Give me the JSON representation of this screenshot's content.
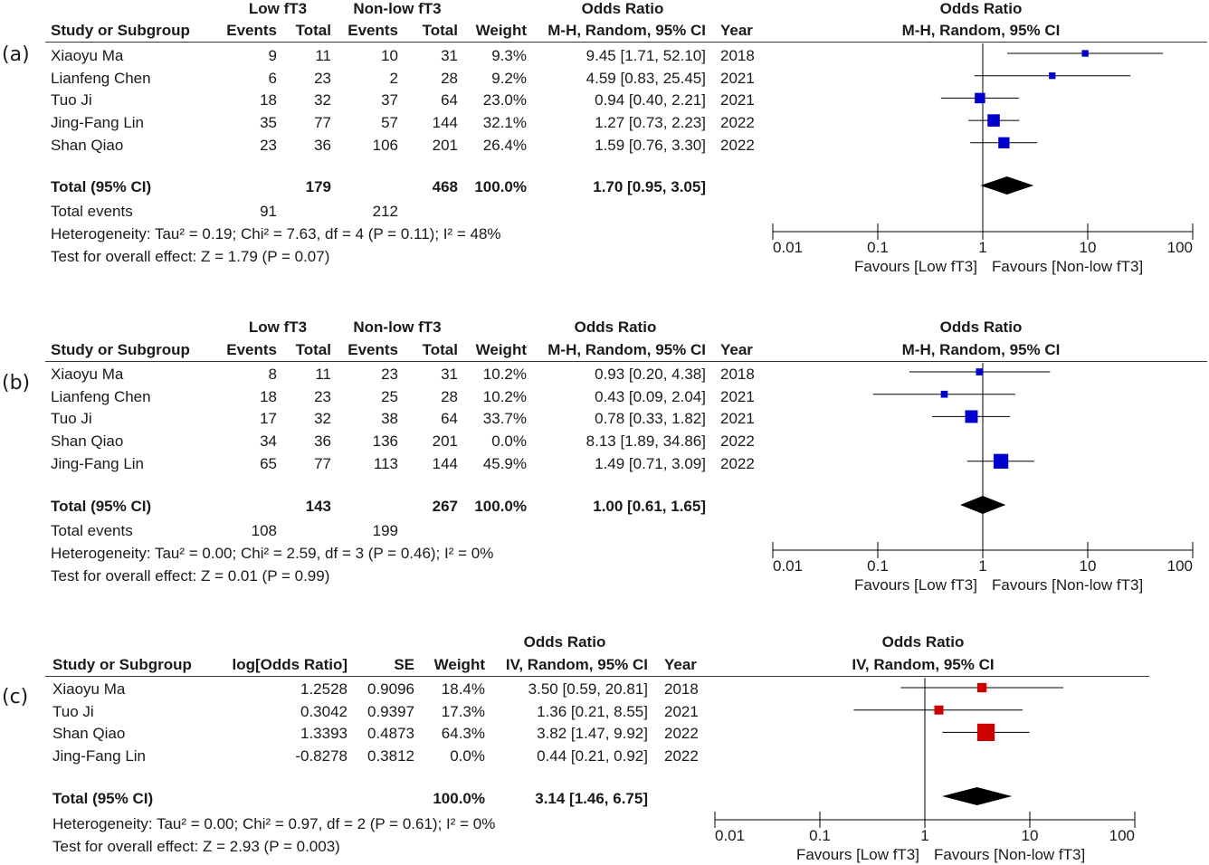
{
  "chart_data": [
    {
      "type": "forest",
      "panel": "(a)",
      "header": {
        "group1": "Low fT3",
        "group2": "Non-low fT3",
        "or_title": "Odds Ratio",
        "method": "M-H, Random, 95% CI",
        "cols": [
          "Study or Subgroup",
          "Events",
          "Total",
          "Events",
          "Total",
          "Weight",
          "M-H, Random, 95% CI",
          "Year"
        ]
      },
      "studies": [
        {
          "name": "Xiaoyu Ma",
          "e1": "9",
          "t1": "11",
          "e2": "10",
          "t2": "31",
          "weight": "9.3%",
          "ci": "9.45 [1.71, 52.10]",
          "year": "2018",
          "or": 9.45,
          "lo": 1.71,
          "hi": 52.1,
          "w": 9.3
        },
        {
          "name": "Lianfeng Chen",
          "e1": "6",
          "t1": "23",
          "e2": "2",
          "t2": "28",
          "weight": "9.2%",
          "ci": "4.59 [0.83, 25.45]",
          "year": "2021",
          "or": 4.59,
          "lo": 0.83,
          "hi": 25.45,
          "w": 9.2
        },
        {
          "name": "Tuo Ji",
          "e1": "18",
          "t1": "32",
          "e2": "37",
          "t2": "64",
          "weight": "23.0%",
          "ci": "0.94 [0.40, 2.21]",
          "year": "2021",
          "or": 0.94,
          "lo": 0.4,
          "hi": 2.21,
          "w": 23.0
        },
        {
          "name": "Jing-Fang Lin",
          "e1": "35",
          "t1": "77",
          "e2": "57",
          "t2": "144",
          "weight": "32.1%",
          "ci": "1.27 [0.73, 2.23]",
          "year": "2022",
          "or": 1.27,
          "lo": 0.73,
          "hi": 2.23,
          "w": 32.1
        },
        {
          "name": "Shan Qiao",
          "e1": "23",
          "t1": "36",
          "e2": "106",
          "t2": "201",
          "weight": "26.4%",
          "ci": "1.59 [0.76, 3.30]",
          "year": "2022",
          "or": 1.59,
          "lo": 0.76,
          "hi": 3.3,
          "w": 26.4
        }
      ],
      "total": {
        "label": "Total (95% CI)",
        "t1": "179",
        "t2": "468",
        "weight": "100.0%",
        "ci": "1.70 [0.95, 3.05]",
        "or": 1.7,
        "lo": 0.95,
        "hi": 3.05
      },
      "events": {
        "label": "Total events",
        "e1": "91",
        "e2": "212"
      },
      "heterogeneity": "Heterogeneity: Tau² = 0.19; Chi² = 7.63, df = 4 (P = 0.11); I² = 48%",
      "overall": "Test for overall effect: Z = 1.79 (P = 0.07)",
      "axis": {
        "ticks": [
          "0.01",
          "0.1",
          "1",
          "10",
          "100"
        ],
        "tick_values": [
          0.01,
          0.1,
          1,
          10,
          100
        ],
        "scale": "log",
        "favours_left": "Favours [Low fT3]",
        "favours_right": "Favours [Non-low fT3]"
      },
      "marker_color": "#0000cc"
    },
    {
      "type": "forest",
      "panel": "(b)",
      "header": {
        "group1": "Low fT3",
        "group2": "Non-low fT3",
        "or_title": "Odds Ratio",
        "method": "M-H, Random, 95% CI",
        "cols": [
          "Study or Subgroup",
          "Events",
          "Total",
          "Events",
          "Total",
          "Weight",
          "M-H, Random, 95% CI",
          "Year"
        ]
      },
      "studies": [
        {
          "name": "Xiaoyu Ma",
          "e1": "8",
          "t1": "11",
          "e2": "23",
          "t2": "31",
          "weight": "10.2%",
          "ci": "0.93 [0.20, 4.38]",
          "year": "2018",
          "or": 0.93,
          "lo": 0.2,
          "hi": 4.38,
          "w": 10.2
        },
        {
          "name": "Lianfeng Chen",
          "e1": "18",
          "t1": "23",
          "e2": "25",
          "t2": "28",
          "weight": "10.2%",
          "ci": "0.43 [0.09, 2.04]",
          "year": "2021",
          "or": 0.43,
          "lo": 0.09,
          "hi": 2.04,
          "w": 10.2
        },
        {
          "name": "Tuo Ji",
          "e1": "17",
          "t1": "32",
          "e2": "38",
          "t2": "64",
          "weight": "33.7%",
          "ci": "0.78 [0.33, 1.82]",
          "year": "2021",
          "or": 0.78,
          "lo": 0.33,
          "hi": 1.82,
          "w": 33.7
        },
        {
          "name": "Shan Qiao",
          "e1": "34",
          "t1": "36",
          "e2": "136",
          "t2": "201",
          "weight": "0.0%",
          "ci": "8.13 [1.89, 34.86]",
          "year": "2022",
          "or": null,
          "lo": null,
          "hi": null,
          "w": 0
        },
        {
          "name": "Jing-Fang Lin",
          "e1": "65",
          "t1": "77",
          "e2": "113",
          "t2": "144",
          "weight": "45.9%",
          "ci": "1.49 [0.71, 3.09]",
          "year": "2022",
          "or": 1.49,
          "lo": 0.71,
          "hi": 3.09,
          "w": 45.9
        }
      ],
      "total": {
        "label": "Total (95% CI)",
        "t1": "143",
        "t2": "267",
        "weight": "100.0%",
        "ci": "1.00 [0.61, 1.65]",
        "or": 1.0,
        "lo": 0.61,
        "hi": 1.65
      },
      "events": {
        "label": "Total events",
        "e1": "108",
        "e2": "199"
      },
      "heterogeneity": "Heterogeneity: Tau² = 0.00; Chi² = 2.59, df = 3 (P = 0.46); I² = 0%",
      "overall": "Test for overall effect: Z = 0.01 (P = 0.99)",
      "axis": {
        "ticks": [
          "0.01",
          "0.1",
          "1",
          "10",
          "100"
        ],
        "tick_values": [
          0.01,
          0.1,
          1,
          10,
          100
        ],
        "scale": "log",
        "favours_left": "Favours [Low fT3]",
        "favours_right": "Favours [Non-low fT3]"
      },
      "marker_color": "#0000cc"
    },
    {
      "type": "forest",
      "panel": "(c)",
      "header": {
        "or_title": "Odds Ratio",
        "method": "IV, Random, 95% CI",
        "cols": [
          "Study or Subgroup",
          "log[Odds Ratio]",
          "SE",
          "Weight",
          "IV, Random, 95% CI",
          "Year"
        ]
      },
      "studies": [
        {
          "name": "Xiaoyu Ma",
          "logor": "1.2528",
          "se": "0.9096",
          "weight": "18.4%",
          "ci": "3.50 [0.59, 20.81]",
          "year": "2018",
          "or": 3.5,
          "lo": 0.59,
          "hi": 20.81,
          "w": 18.4
        },
        {
          "name": "Tuo Ji",
          "logor": "0.3042",
          "se": "0.9397",
          "weight": "17.3%",
          "ci": "1.36 [0.21, 8.55]",
          "year": "2021",
          "or": 1.36,
          "lo": 0.21,
          "hi": 8.55,
          "w": 17.3
        },
        {
          "name": "Shan Qiao",
          "logor": "1.3393",
          "se": "0.4873",
          "weight": "64.3%",
          "ci": "3.82 [1.47, 9.92]",
          "year": "2022",
          "or": 3.82,
          "lo": 1.47,
          "hi": 9.92,
          "w": 64.3
        },
        {
          "name": "Jing-Fang Lin",
          "logor": "-0.8278",
          "se": "0.3812",
          "weight": "0.0%",
          "ci": "0.44 [0.21, 0.92]",
          "year": "2022",
          "or": null,
          "lo": null,
          "hi": null,
          "w": 0
        }
      ],
      "total": {
        "label": "Total (95% CI)",
        "weight": "100.0%",
        "ci": "3.14 [1.46, 6.75]",
        "or": 3.14,
        "lo": 1.46,
        "hi": 6.75
      },
      "heterogeneity": "Heterogeneity: Tau² = 0.00; Chi² = 0.97, df = 2 (P = 0.61); I² = 0%",
      "overall": "Test for overall effect: Z = 2.93 (P = 0.003)",
      "axis": {
        "ticks": [
          "0.01",
          "0.1",
          "1",
          "10",
          "100"
        ],
        "tick_values": [
          0.01,
          0.1,
          1,
          10,
          100
        ],
        "scale": "log",
        "favours_left": "Favours [Low fT3]",
        "favours_right": "Favours [Non-low fT3]"
      },
      "marker_color": "#cc0000"
    }
  ]
}
